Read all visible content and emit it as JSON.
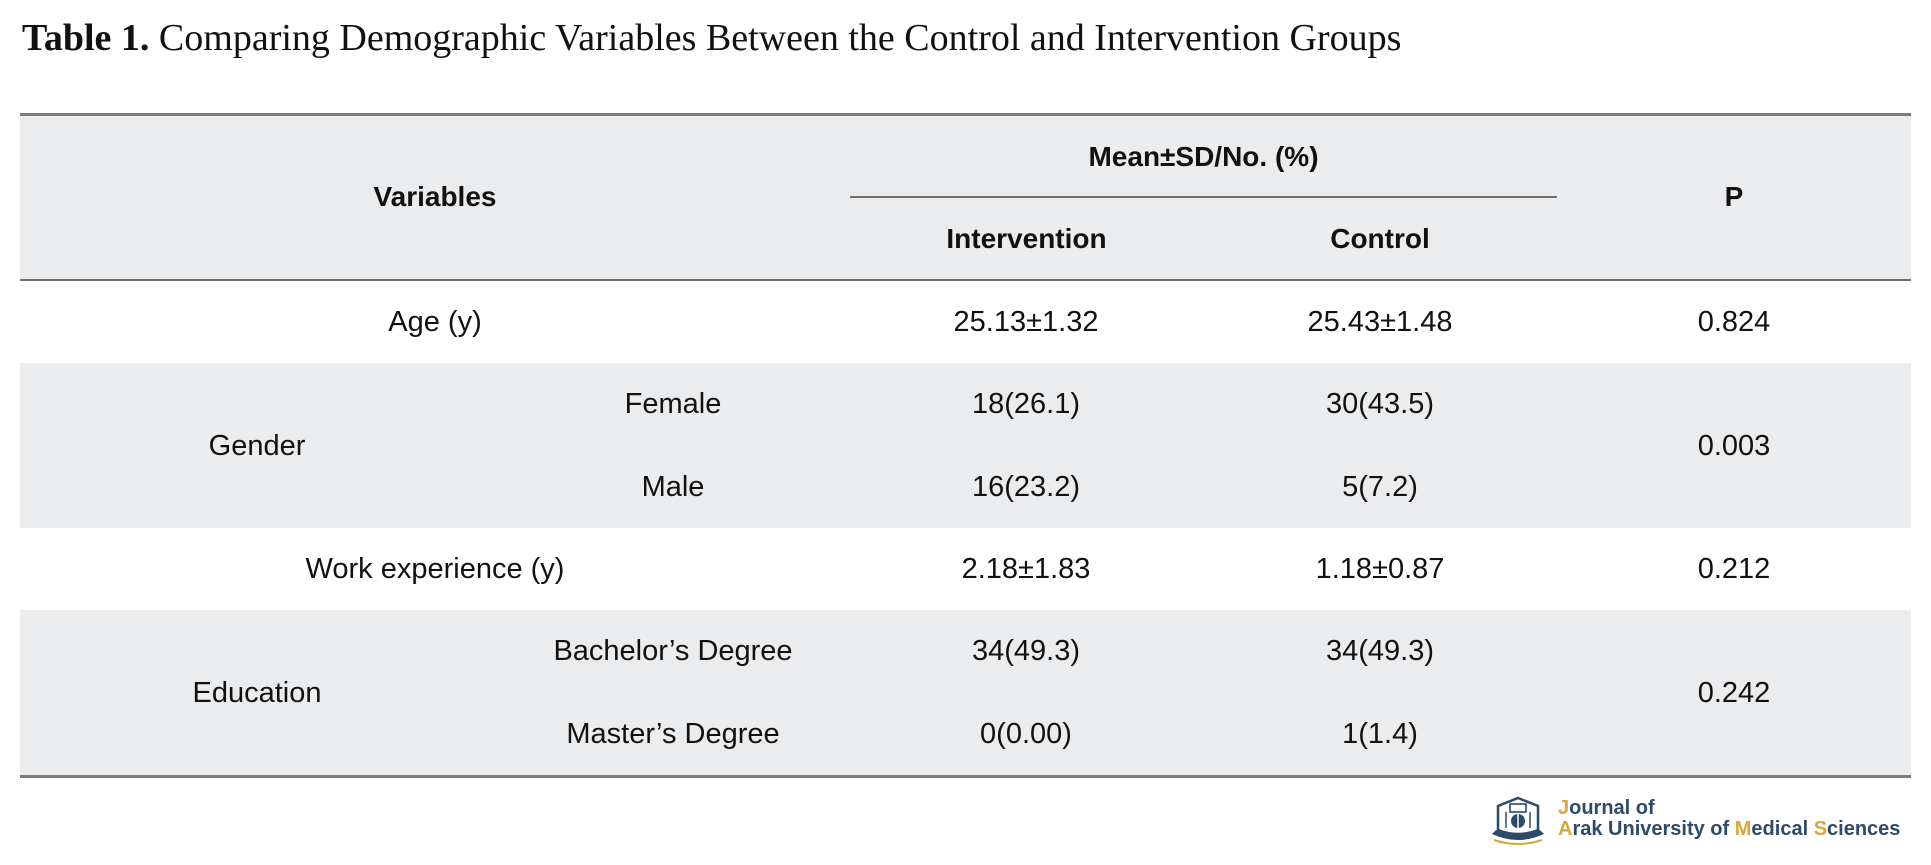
{
  "caption": {
    "label": "Table 1.",
    "text": "Comparing Demographic Variables Between the Control and Intervention Groups"
  },
  "table": {
    "header": {
      "variables": "Variables",
      "group": "Mean±SD/No. (%)",
      "intervention": "Intervention",
      "control": "Control",
      "p": "P"
    },
    "rows": [
      {
        "variable": "Age (y)",
        "intervention": "25.13±1.32",
        "control": "25.43±1.48",
        "p": "0.824"
      },
      {
        "variable": "Gender",
        "p": "0.003",
        "sub": [
          {
            "label": "Female",
            "intervention": "18(26.1)",
            "control": "30(43.5)"
          },
          {
            "label": "Male",
            "intervention": "16(23.2)",
            "control": "5(7.2)"
          }
        ]
      },
      {
        "variable": "Work experience (y)",
        "intervention": "2.18±1.83",
        "control": "1.18±0.87",
        "p": "0.212"
      },
      {
        "variable": "Education",
        "p": "0.242",
        "sub": [
          {
            "label": "Bachelor’s Degree",
            "intervention": "34(49.3)",
            "control": "34(49.3)"
          },
          {
            "label": "Master’s Degree",
            "intervention": "0(0.00)",
            "control": "1(1.4)"
          }
        ]
      }
    ]
  },
  "logo": {
    "line1": {
      "j": "J",
      "rest": "ournal of"
    },
    "line2": {
      "a": "A",
      "rak": "rak University of ",
      "m": "M",
      "edical": "edical ",
      "s": "S",
      "ciences": "ciences"
    },
    "icon": "university-emblem-icon",
    "colors": {
      "navy": "#2d4a66",
      "gold": "#d6a73a"
    }
  },
  "colors": {
    "header_bg": "#ebecee",
    "shaded_row_bg": "#ebecee",
    "rule": "#7b7b7b"
  }
}
